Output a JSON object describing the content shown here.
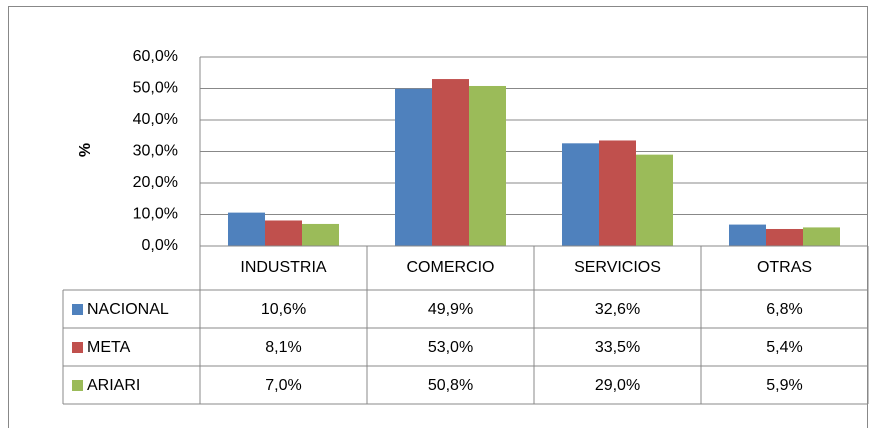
{
  "chart_data": {
    "type": "bar",
    "ylabel": "%",
    "categories": [
      "INDUSTRIA",
      "COMERCIO",
      "SERVICIOS",
      "OTRAS"
    ],
    "series": [
      {
        "name": "NACIONAL",
        "color": "#4f81bd",
        "values": [
          10.6,
          49.9,
          32.6,
          6.8
        ],
        "value_labels": [
          "10,6%",
          "49,9%",
          "32,6%",
          "6,8%"
        ]
      },
      {
        "name": "META",
        "color": "#c0504d",
        "values": [
          8.1,
          53.0,
          33.5,
          5.4
        ],
        "value_labels": [
          "8,1%",
          "53,0%",
          "33,5%",
          "5,4%"
        ]
      },
      {
        "name": "ARIARI",
        "color": "#9bbb59",
        "values": [
          7.0,
          50.8,
          29.0,
          5.9
        ],
        "value_labels": [
          "7,0%",
          "50,8%",
          "29,0%",
          "5,9%"
        ]
      }
    ],
    "ylim": [
      0,
      60
    ],
    "yticks": [
      {
        "value": 0,
        "label": "0,0%"
      },
      {
        "value": 10,
        "label": "10,0%"
      },
      {
        "value": 20,
        "label": "20,0%"
      },
      {
        "value": 30,
        "label": "30,0%"
      },
      {
        "value": 40,
        "label": "40,0%"
      },
      {
        "value": 50,
        "label": "50,0%"
      },
      {
        "value": 60,
        "label": "60,0%"
      }
    ],
    "grid": true
  }
}
